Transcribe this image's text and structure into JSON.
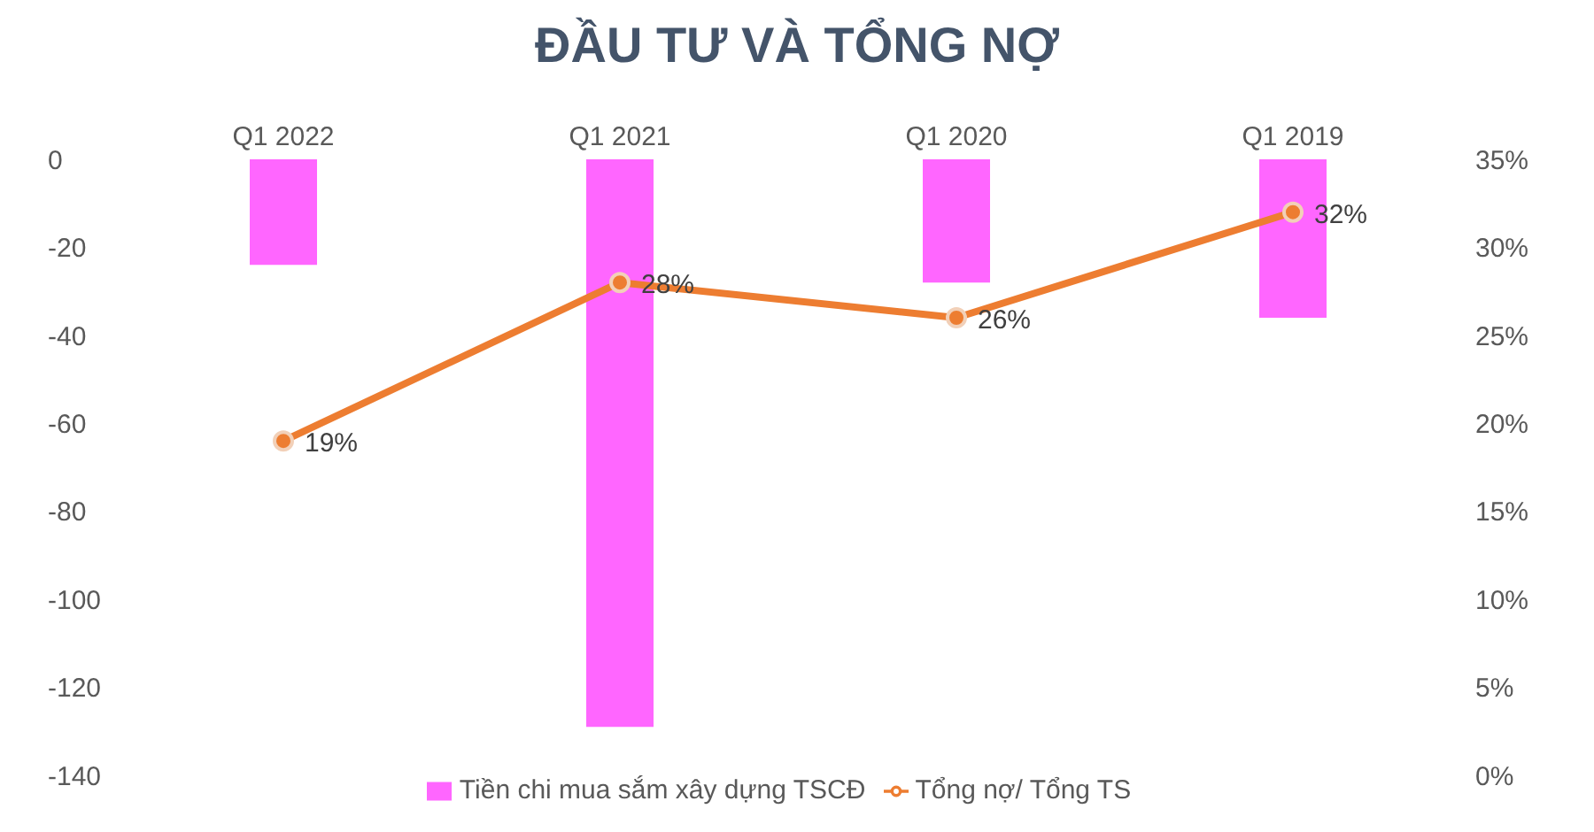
{
  "chart_data": {
    "type": "bar",
    "title": "ĐẦU TƯ VÀ TỔNG NỢ",
    "categories": [
      "Q1 2022",
      "Q1 2021",
      "Q1 2020",
      "Q1 2019"
    ],
    "series": [
      {
        "name": "Tiền chi mua sắm xây dựng TSCĐ",
        "color": "#ff66ff",
        "values": [
          -24,
          -129,
          -28,
          -36
        ]
      },
      {
        "name": "Tổng nợ/ Tổng TS",
        "type": "line",
        "axis": "y2",
        "color": "#ed7d31",
        "values": [
          19,
          28,
          26,
          32
        ],
        "value_labels": [
          "19%",
          "28%",
          "26%",
          "32%"
        ]
      }
    ],
    "ylim": [
      -140,
      0
    ],
    "yticks": [
      -140,
      -120,
      -100,
      -80,
      -60,
      -40,
      -20,
      0
    ],
    "y2lim": [
      0,
      35
    ],
    "y2ticks": [
      {
        "value": 0,
        "label": "0%"
      },
      {
        "value": 5,
        "label": "5%"
      },
      {
        "value": 10,
        "label": "10%"
      },
      {
        "value": 15,
        "label": "15%"
      },
      {
        "value": 20,
        "label": "20%"
      },
      {
        "value": 25,
        "label": "25%"
      },
      {
        "value": 30,
        "label": "30%"
      },
      {
        "value": 35,
        "label": "35%"
      }
    ],
    "grid": false,
    "legend": "bottom",
    "marker": "circle",
    "line_style": "solid"
  }
}
